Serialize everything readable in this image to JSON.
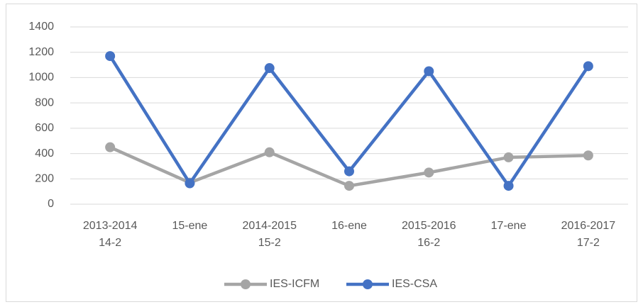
{
  "chart_data": {
    "type": "line",
    "categories": [
      [
        "2013-2014",
        "14-2"
      ],
      [
        "15-ene"
      ],
      [
        "2014-2015",
        "15-2"
      ],
      [
        "16-ene"
      ],
      [
        "2015-2016",
        "16-2"
      ],
      [
        "17-ene"
      ],
      [
        "2016-2017",
        "17-2"
      ]
    ],
    "series": [
      {
        "name": "IES-ICFM",
        "color": "#a5a5a5",
        "values": [
          450,
          170,
          410,
          145,
          250,
          370,
          385
        ]
      },
      {
        "name": "IES-CSA",
        "color": "#4472c4",
        "values": [
          1170,
          165,
          1075,
          260,
          1050,
          145,
          1090
        ]
      }
    ],
    "ylim": [
      0,
      1400
    ],
    "yticks": [
      0,
      200,
      400,
      600,
      800,
      1000,
      1200,
      1400
    ],
    "grid": true,
    "legend": "bottom"
  }
}
